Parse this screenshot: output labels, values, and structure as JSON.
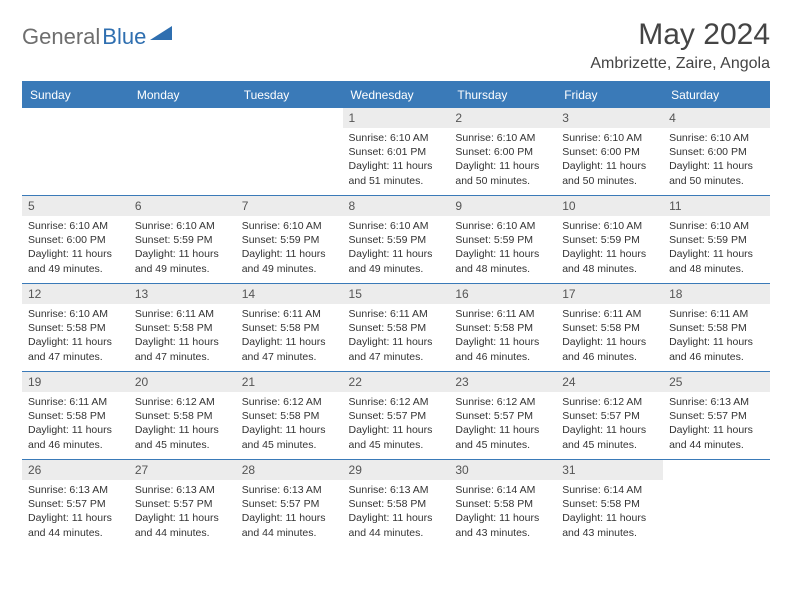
{
  "logo": {
    "text1": "General",
    "text2": "Blue",
    "shape_color": "#2f6fb0"
  },
  "title": "May 2024",
  "location": "Ambrizette, Zaire, Angola",
  "colors": {
    "header_bg": "#3a7ab8",
    "header_text": "#ffffff",
    "daynum_bg": "#ececec",
    "border": "#3a7ab8",
    "text": "#333333"
  },
  "day_headers": [
    "Sunday",
    "Monday",
    "Tuesday",
    "Wednesday",
    "Thursday",
    "Friday",
    "Saturday"
  ],
  "weeks": [
    [
      null,
      null,
      null,
      {
        "n": "1",
        "sr": "6:10 AM",
        "ss": "6:01 PM",
        "dl": "11 hours and 51 minutes."
      },
      {
        "n": "2",
        "sr": "6:10 AM",
        "ss": "6:00 PM",
        "dl": "11 hours and 50 minutes."
      },
      {
        "n": "3",
        "sr": "6:10 AM",
        "ss": "6:00 PM",
        "dl": "11 hours and 50 minutes."
      },
      {
        "n": "4",
        "sr": "6:10 AM",
        "ss": "6:00 PM",
        "dl": "11 hours and 50 minutes."
      }
    ],
    [
      {
        "n": "5",
        "sr": "6:10 AM",
        "ss": "6:00 PM",
        "dl": "11 hours and 49 minutes."
      },
      {
        "n": "6",
        "sr": "6:10 AM",
        "ss": "5:59 PM",
        "dl": "11 hours and 49 minutes."
      },
      {
        "n": "7",
        "sr": "6:10 AM",
        "ss": "5:59 PM",
        "dl": "11 hours and 49 minutes."
      },
      {
        "n": "8",
        "sr": "6:10 AM",
        "ss": "5:59 PM",
        "dl": "11 hours and 49 minutes."
      },
      {
        "n": "9",
        "sr": "6:10 AM",
        "ss": "5:59 PM",
        "dl": "11 hours and 48 minutes."
      },
      {
        "n": "10",
        "sr": "6:10 AM",
        "ss": "5:59 PM",
        "dl": "11 hours and 48 minutes."
      },
      {
        "n": "11",
        "sr": "6:10 AM",
        "ss": "5:59 PM",
        "dl": "11 hours and 48 minutes."
      }
    ],
    [
      {
        "n": "12",
        "sr": "6:10 AM",
        "ss": "5:58 PM",
        "dl": "11 hours and 47 minutes."
      },
      {
        "n": "13",
        "sr": "6:11 AM",
        "ss": "5:58 PM",
        "dl": "11 hours and 47 minutes."
      },
      {
        "n": "14",
        "sr": "6:11 AM",
        "ss": "5:58 PM",
        "dl": "11 hours and 47 minutes."
      },
      {
        "n": "15",
        "sr": "6:11 AM",
        "ss": "5:58 PM",
        "dl": "11 hours and 47 minutes."
      },
      {
        "n": "16",
        "sr": "6:11 AM",
        "ss": "5:58 PM",
        "dl": "11 hours and 46 minutes."
      },
      {
        "n": "17",
        "sr": "6:11 AM",
        "ss": "5:58 PM",
        "dl": "11 hours and 46 minutes."
      },
      {
        "n": "18",
        "sr": "6:11 AM",
        "ss": "5:58 PM",
        "dl": "11 hours and 46 minutes."
      }
    ],
    [
      {
        "n": "19",
        "sr": "6:11 AM",
        "ss": "5:58 PM",
        "dl": "11 hours and 46 minutes."
      },
      {
        "n": "20",
        "sr": "6:12 AM",
        "ss": "5:58 PM",
        "dl": "11 hours and 45 minutes."
      },
      {
        "n": "21",
        "sr": "6:12 AM",
        "ss": "5:58 PM",
        "dl": "11 hours and 45 minutes."
      },
      {
        "n": "22",
        "sr": "6:12 AM",
        "ss": "5:57 PM",
        "dl": "11 hours and 45 minutes."
      },
      {
        "n": "23",
        "sr": "6:12 AM",
        "ss": "5:57 PM",
        "dl": "11 hours and 45 minutes."
      },
      {
        "n": "24",
        "sr": "6:12 AM",
        "ss": "5:57 PM",
        "dl": "11 hours and 45 minutes."
      },
      {
        "n": "25",
        "sr": "6:13 AM",
        "ss": "5:57 PM",
        "dl": "11 hours and 44 minutes."
      }
    ],
    [
      {
        "n": "26",
        "sr": "6:13 AM",
        "ss": "5:57 PM",
        "dl": "11 hours and 44 minutes."
      },
      {
        "n": "27",
        "sr": "6:13 AM",
        "ss": "5:57 PM",
        "dl": "11 hours and 44 minutes."
      },
      {
        "n": "28",
        "sr": "6:13 AM",
        "ss": "5:57 PM",
        "dl": "11 hours and 44 minutes."
      },
      {
        "n": "29",
        "sr": "6:13 AM",
        "ss": "5:58 PM",
        "dl": "11 hours and 44 minutes."
      },
      {
        "n": "30",
        "sr": "6:14 AM",
        "ss": "5:58 PM",
        "dl": "11 hours and 43 minutes."
      },
      {
        "n": "31",
        "sr": "6:14 AM",
        "ss": "5:58 PM",
        "dl": "11 hours and 43 minutes."
      },
      null
    ]
  ]
}
